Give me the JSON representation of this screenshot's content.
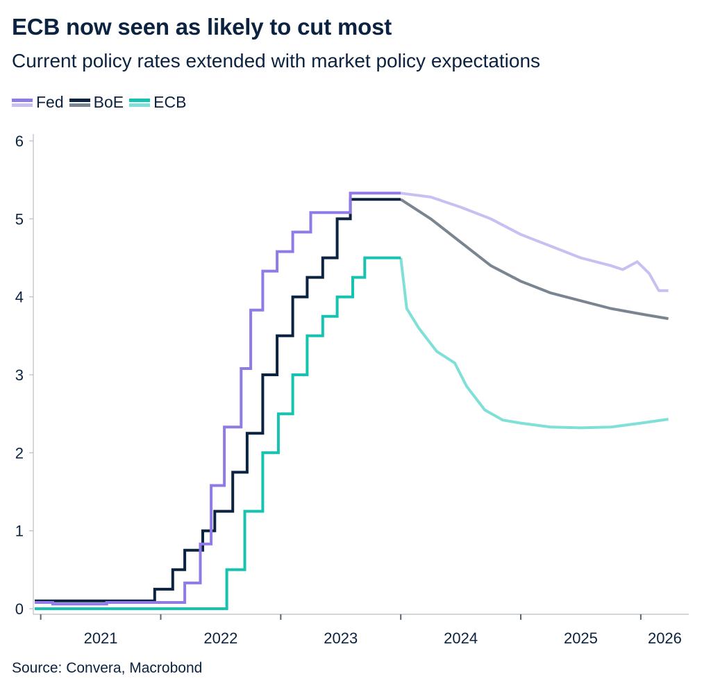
{
  "header": {
    "title": "ECB now seen as likely to cut most",
    "subtitle": "Current policy rates extended with market policy expectations"
  },
  "footer": {
    "source": "Source: Convera, Macrobond"
  },
  "legend": [
    {
      "name": "Fed",
      "color_actual": "#8f7ae6",
      "color_expected": "#c8c0f2"
    },
    {
      "name": "BoE",
      "color_actual": "#0b2240",
      "color_expected": "#7a8591"
    },
    {
      "name": "ECB",
      "color_actual": "#15c3b0",
      "color_expected": "#7ee0d6"
    }
  ],
  "chart_data": {
    "type": "line",
    "title": "ECB now seen as likely to cut most",
    "subtitle": "Current policy rates extended with market policy expectations",
    "xlabel": "",
    "ylabel": "",
    "xlim": [
      2020.95,
      2026.4
    ],
    "ylim": [
      0,
      6
    ],
    "yticks": [
      0,
      1,
      2,
      3,
      4,
      5,
      6
    ],
    "xtick_labels": [
      "2021",
      "2022",
      "2023",
      "2024",
      "2025",
      "2026"
    ],
    "grid": false,
    "legend_position": "top-left",
    "forecast_start": 2024.0,
    "series": [
      {
        "name": "Fed",
        "color": "#8f7ae6",
        "forecast_color": "#c8c0f2",
        "step": true,
        "x": [
          2020.95,
          2021.1,
          2021.45,
          2021.55,
          2022.0,
          2022.2,
          2022.33,
          2022.42,
          2022.53,
          2022.58,
          2022.67,
          2022.75,
          2022.85,
          2022.97,
          2023.1,
          2023.25,
          2023.35,
          2023.5,
          2023.58,
          2024.0
        ],
        "y": [
          0.08,
          0.06,
          0.06,
          0.08,
          0.08,
          0.33,
          0.83,
          1.58,
          2.33,
          2.33,
          3.08,
          3.83,
          4.33,
          4.58,
          4.83,
          5.08,
          5.08,
          5.08,
          5.33,
          5.33
        ],
        "forecast_x": [
          2024.0,
          2024.25,
          2024.5,
          2024.75,
          2025.0,
          2025.25,
          2025.5,
          2025.75,
          2025.85,
          2025.97,
          2026.07,
          2026.15,
          2026.23
        ],
        "forecast_y": [
          5.33,
          5.28,
          5.15,
          5.0,
          4.8,
          4.65,
          4.5,
          4.4,
          4.35,
          4.45,
          4.3,
          4.08,
          4.08
        ]
      },
      {
        "name": "BoE",
        "color": "#0b2240",
        "forecast_color": "#7a8591",
        "step": true,
        "x": [
          2020.95,
          2021.6,
          2021.95,
          2022.1,
          2022.2,
          2022.35,
          2022.45,
          2022.6,
          2022.72,
          2022.85,
          2022.97,
          2023.1,
          2023.22,
          2023.35,
          2023.47,
          2023.58,
          2024.0
        ],
        "y": [
          0.1,
          0.1,
          0.25,
          0.5,
          0.75,
          1.0,
          1.25,
          1.75,
          2.25,
          3.0,
          3.5,
          4.0,
          4.25,
          4.5,
          5.0,
          5.25,
          5.25
        ],
        "forecast_x": [
          2024.0,
          2024.25,
          2024.5,
          2024.75,
          2025.0,
          2025.25,
          2025.5,
          2025.75,
          2026.0,
          2026.23
        ],
        "forecast_y": [
          5.25,
          5.0,
          4.7,
          4.4,
          4.2,
          4.05,
          3.95,
          3.85,
          3.78,
          3.72
        ]
      },
      {
        "name": "ECB",
        "color": "#15c3b0",
        "forecast_color": "#7ee0d6",
        "step": true,
        "x": [
          2020.95,
          2022.55,
          2022.7,
          2022.85,
          2022.98,
          2023.1,
          2023.22,
          2023.35,
          2023.47,
          2023.6,
          2023.7,
          2024.0
        ],
        "y": [
          0.0,
          0.5,
          1.25,
          2.0,
          2.5,
          3.0,
          3.5,
          3.75,
          4.0,
          4.25,
          4.5,
          4.5
        ],
        "forecast_x": [
          2024.0,
          2024.05,
          2024.15,
          2024.3,
          2024.45,
          2024.55,
          2024.7,
          2024.85,
          2025.0,
          2025.25,
          2025.5,
          2025.75,
          2026.0,
          2026.23
        ],
        "forecast_y": [
          4.5,
          3.85,
          3.6,
          3.3,
          3.15,
          2.85,
          2.55,
          2.42,
          2.38,
          2.33,
          2.32,
          2.33,
          2.38,
          2.43
        ]
      }
    ]
  }
}
